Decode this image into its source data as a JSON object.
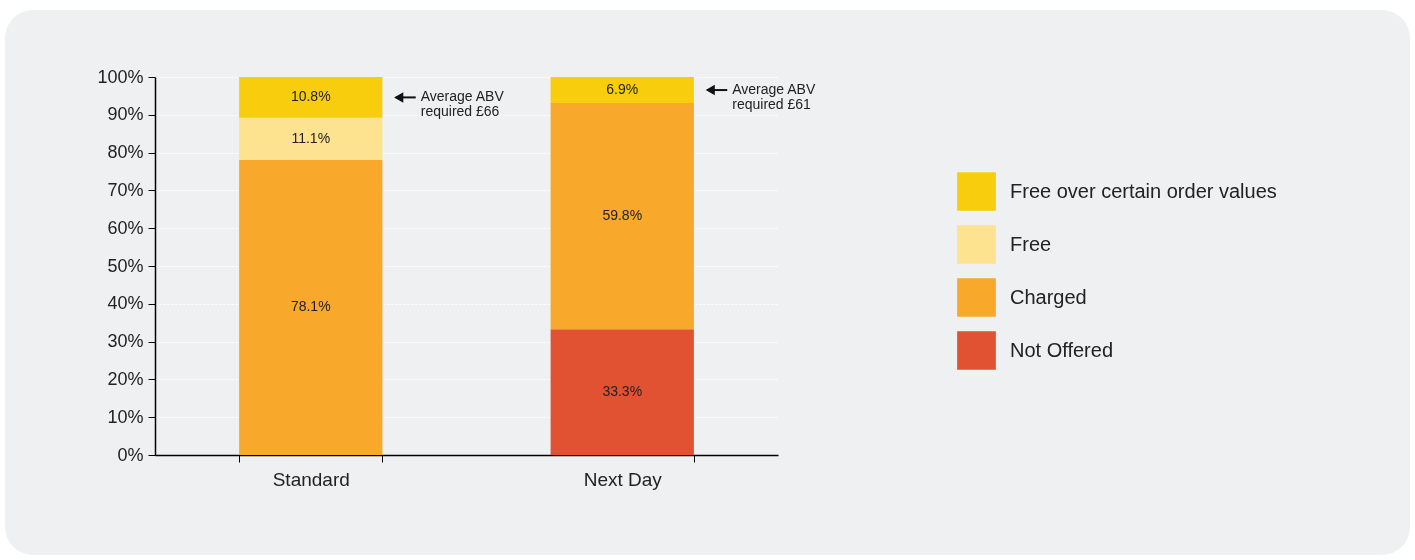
{
  "chart_data": {
    "type": "bar",
    "stacked": true,
    "categories": [
      "Standard",
      "Next Day"
    ],
    "series": [
      {
        "name": "Not Offered",
        "color": "#e05232",
        "values": [
          null,
          33.3
        ],
        "value_labels": [
          null,
          "33.3%"
        ]
      },
      {
        "name": "Charged",
        "color": "#f8a82b",
        "values": [
          78.1,
          59.8
        ],
        "value_labels": [
          "78.1%",
          "59.8%"
        ]
      },
      {
        "name": "Free",
        "color": "#fde290",
        "values": [
          11.1,
          null
        ],
        "value_labels": [
          "11.1%",
          null
        ]
      },
      {
        "name": "Free over certain order values",
        "color": "#f8cd0e",
        "values": [
          10.8,
          6.9
        ],
        "value_labels": [
          "10.8%",
          "6.9%"
        ]
      }
    ],
    "ylim": [
      0,
      100
    ],
    "yticks": [
      {
        "value": 0,
        "label": "0%"
      },
      {
        "value": 10,
        "label": "10%"
      },
      {
        "value": 20,
        "label": "20%"
      },
      {
        "value": 30,
        "label": "30%"
      },
      {
        "value": 40,
        "label": "40%"
      },
      {
        "value": 50,
        "label": "50%"
      },
      {
        "value": 60,
        "label": "60%"
      },
      {
        "value": 70,
        "label": "70%"
      },
      {
        "value": 80,
        "label": "80%"
      },
      {
        "value": 90,
        "label": "90%"
      },
      {
        "value": 100,
        "label": "100%"
      }
    ],
    "grid": "y",
    "legend": "right",
    "annotations": [
      "Average ABV\nrequired £66",
      "Average ABV\nrequired £61"
    ]
  }
}
